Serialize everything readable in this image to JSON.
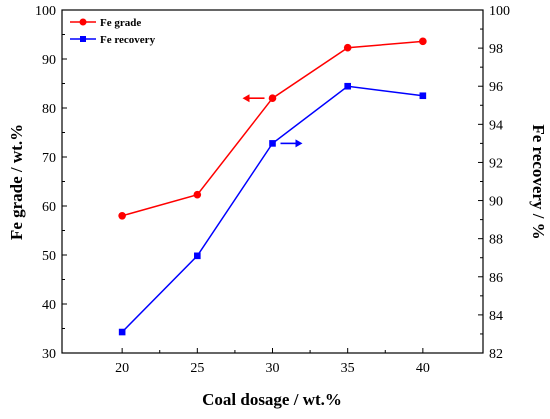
{
  "chart_data": {
    "type": "line",
    "xlabel": "Coal dosage / wt.%",
    "ylabel_left": "Fe grade / wt.%",
    "ylabel_right": "Fe recovery / %",
    "xlim": [
      16,
      44
    ],
    "ylim_left": [
      30,
      100
    ],
    "ylim_right": [
      82,
      100
    ],
    "x_ticks": [
      20,
      25,
      30,
      35,
      40
    ],
    "y_left_ticks": [
      30,
      40,
      50,
      60,
      70,
      80,
      90,
      100
    ],
    "y_right_ticks": [
      82,
      84,
      86,
      88,
      90,
      92,
      94,
      96,
      98,
      100
    ],
    "legend_position": "top-left",
    "grid": false,
    "series": [
      {
        "name": "Fe grade",
        "axis": "left",
        "marker": "circle",
        "color": "#ff0000",
        "x": [
          20,
          25,
          30,
          35,
          40
        ],
        "values": [
          58.0,
          62.3,
          82.0,
          92.3,
          93.6
        ]
      },
      {
        "name": "Fe recovery",
        "axis": "right",
        "marker": "square",
        "color": "#0000ff",
        "x": [
          20,
          25,
          30,
          35,
          40
        ],
        "values": [
          83.1,
          87.1,
          93.0,
          96.0,
          95.5
        ]
      }
    ],
    "annotations": [
      {
        "type": "arrow",
        "direction": "left",
        "color": "#ff0000",
        "at_x": 30,
        "at_y": 82.0,
        "axis": "left"
      },
      {
        "type": "arrow",
        "direction": "right",
        "color": "#0000ff",
        "at_x": 30,
        "at_y": 93.0,
        "axis": "right"
      }
    ]
  }
}
